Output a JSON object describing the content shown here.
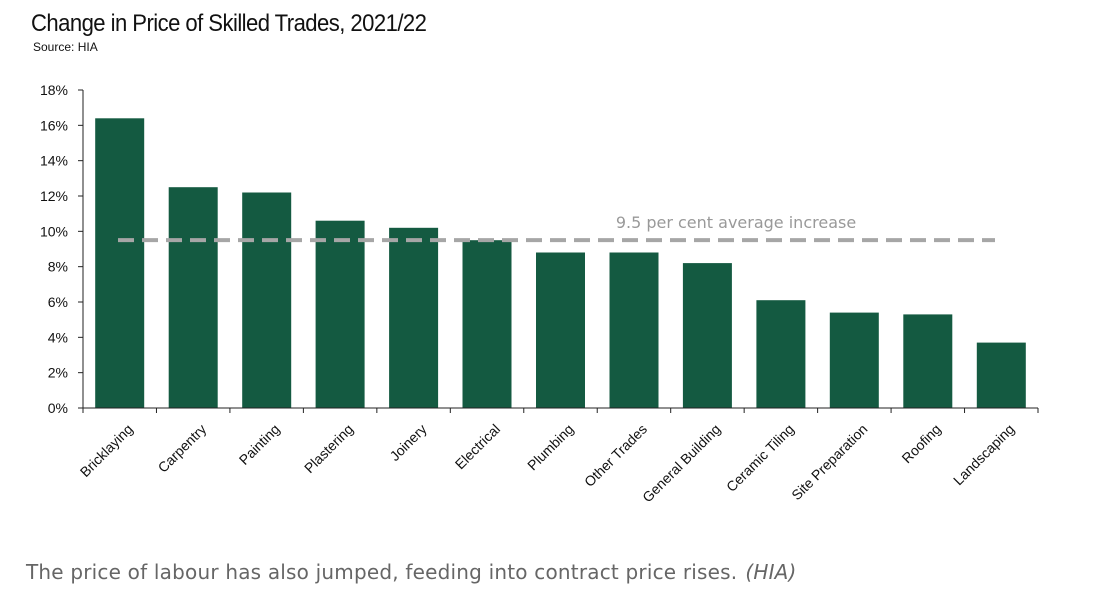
{
  "chart_data": {
    "type": "bar",
    "title": "Change in Price of Skilled Trades, 2021/22",
    "subtitle": "Source: HIA",
    "categories": [
      "Bricklaying",
      "Carpentry",
      "Painting",
      "Plastering",
      "Joinery",
      "Electrical",
      "Plumbing",
      "Other Trades",
      "General Building",
      "Ceramic Tiling",
      "Site Preparation",
      "Roofing",
      "Landscaping"
    ],
    "series": [
      {
        "values": [
          16.4,
          12.5,
          12.2,
          10.6,
          10.2,
          9.5,
          8.8,
          8.8,
          8.2,
          6.1,
          5.4,
          5.3,
          3.7
        ]
      }
    ],
    "ylim": [
      0,
      18
    ],
    "yticks": [
      0,
      2,
      4,
      6,
      8,
      10,
      12,
      14,
      16,
      18
    ],
    "ytick_suffix": "%",
    "reference_line": {
      "value": 9.5,
      "label": "9.5 per cent average increase"
    },
    "grid": false,
    "colors": {
      "bar": "#145a41",
      "reference_line": "#a6a6a6",
      "axis": "#222222"
    }
  },
  "caption": {
    "text": "The price of labour has also jumped, feeding into contract price rises.",
    "source": "(HIA)"
  }
}
